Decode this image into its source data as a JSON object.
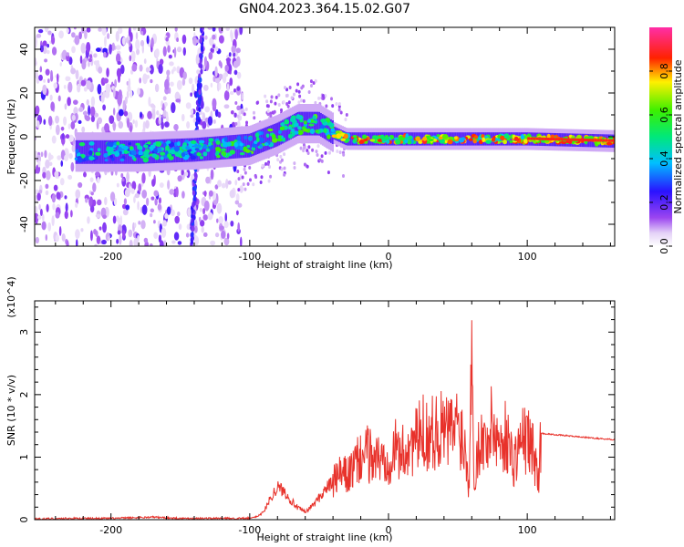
{
  "title": "GN04.2023.364.15.02.G07",
  "chart_data": [
    {
      "type": "heatmap",
      "xlabel": "Height of straight line (km)",
      "ylabel": "Frequency (Hz)",
      "xlim": [
        -255,
        163
      ],
      "ylim": [
        -50,
        50
      ],
      "xticks": [
        -200,
        -100,
        0,
        100
      ],
      "yticks": [
        -40,
        -20,
        0,
        20,
        40
      ],
      "colorbar": {
        "label": "Normalized spectral amplitude",
        "range": [
          0,
          1
        ],
        "ticks": [
          "0.0",
          "0.2",
          "0.4",
          "0.6",
          "0.8"
        ],
        "tick_values": [
          0.0,
          0.2,
          0.4,
          0.6,
          0.8
        ],
        "colormap": "rainbow (white-purple-blue-cyan-green-yellow-red-magenta)"
      },
      "ridge": {
        "description": "dominant frequency track vs height",
        "points": [
          [
            -225,
            -7
          ],
          [
            -180,
            -7
          ],
          [
            -140,
            -6
          ],
          [
            -100,
            -4
          ],
          [
            -80,
            1
          ],
          [
            -65,
            6
          ],
          [
            -50,
            6
          ],
          [
            -40,
            2
          ],
          [
            -30,
            -1
          ],
          [
            0,
            -1
          ],
          [
            50,
            -1
          ],
          [
            100,
            -1
          ],
          [
            163,
            -2
          ]
        ]
      }
    },
    {
      "type": "line",
      "xlabel": "Height of straight line (km)",
      "ylabel": "SNR (10 * v/v)",
      "y_multiplier": "(x10^4)",
      "xlim": [
        -255,
        163
      ],
      "ylim": [
        0,
        3.5
      ],
      "xticks": [
        -200,
        -100,
        0,
        100
      ],
      "yticks": [
        0,
        1,
        2,
        3
      ],
      "color": "#e8322b",
      "series": [
        {
          "x": [
            -255,
            -230,
            -200,
            -170,
            -150,
            -120,
            -100,
            -95,
            -90,
            -85,
            -80,
            -75,
            -70,
            -65,
            -60,
            -55,
            -50,
            -45,
            -40,
            -35,
            -30,
            -25,
            -20,
            -15,
            -10,
            -5,
            0,
            5,
            10,
            15,
            20,
            25,
            30,
            35,
            40,
            45,
            50,
            55,
            58,
            60,
            62,
            65,
            70,
            75,
            80,
            85,
            90,
            95,
            100,
            105,
            108,
            110,
            120,
            130,
            140,
            150,
            163
          ],
          "y": [
            0.01,
            0.02,
            0.02,
            0.04,
            0.02,
            0.02,
            0.02,
            0.05,
            0.12,
            0.35,
            0.52,
            0.45,
            0.3,
            0.18,
            0.12,
            0.22,
            0.35,
            0.5,
            0.6,
            0.72,
            0.7,
            0.82,
            1.0,
            1.05,
            1.0,
            0.95,
            1.0,
            1.12,
            1.05,
            1.2,
            1.25,
            1.4,
            1.35,
            1.45,
            1.42,
            1.4,
            1.55,
            1.2,
            0.5,
            3.4,
            0.4,
            1.3,
            1.2,
            1.55,
            1.2,
            1.35,
            0.9,
            1.25,
            1.3,
            1.05,
            0.6,
            1.38,
            1.36,
            1.34,
            1.32,
            1.3,
            1.28
          ]
        }
      ]
    }
  ]
}
